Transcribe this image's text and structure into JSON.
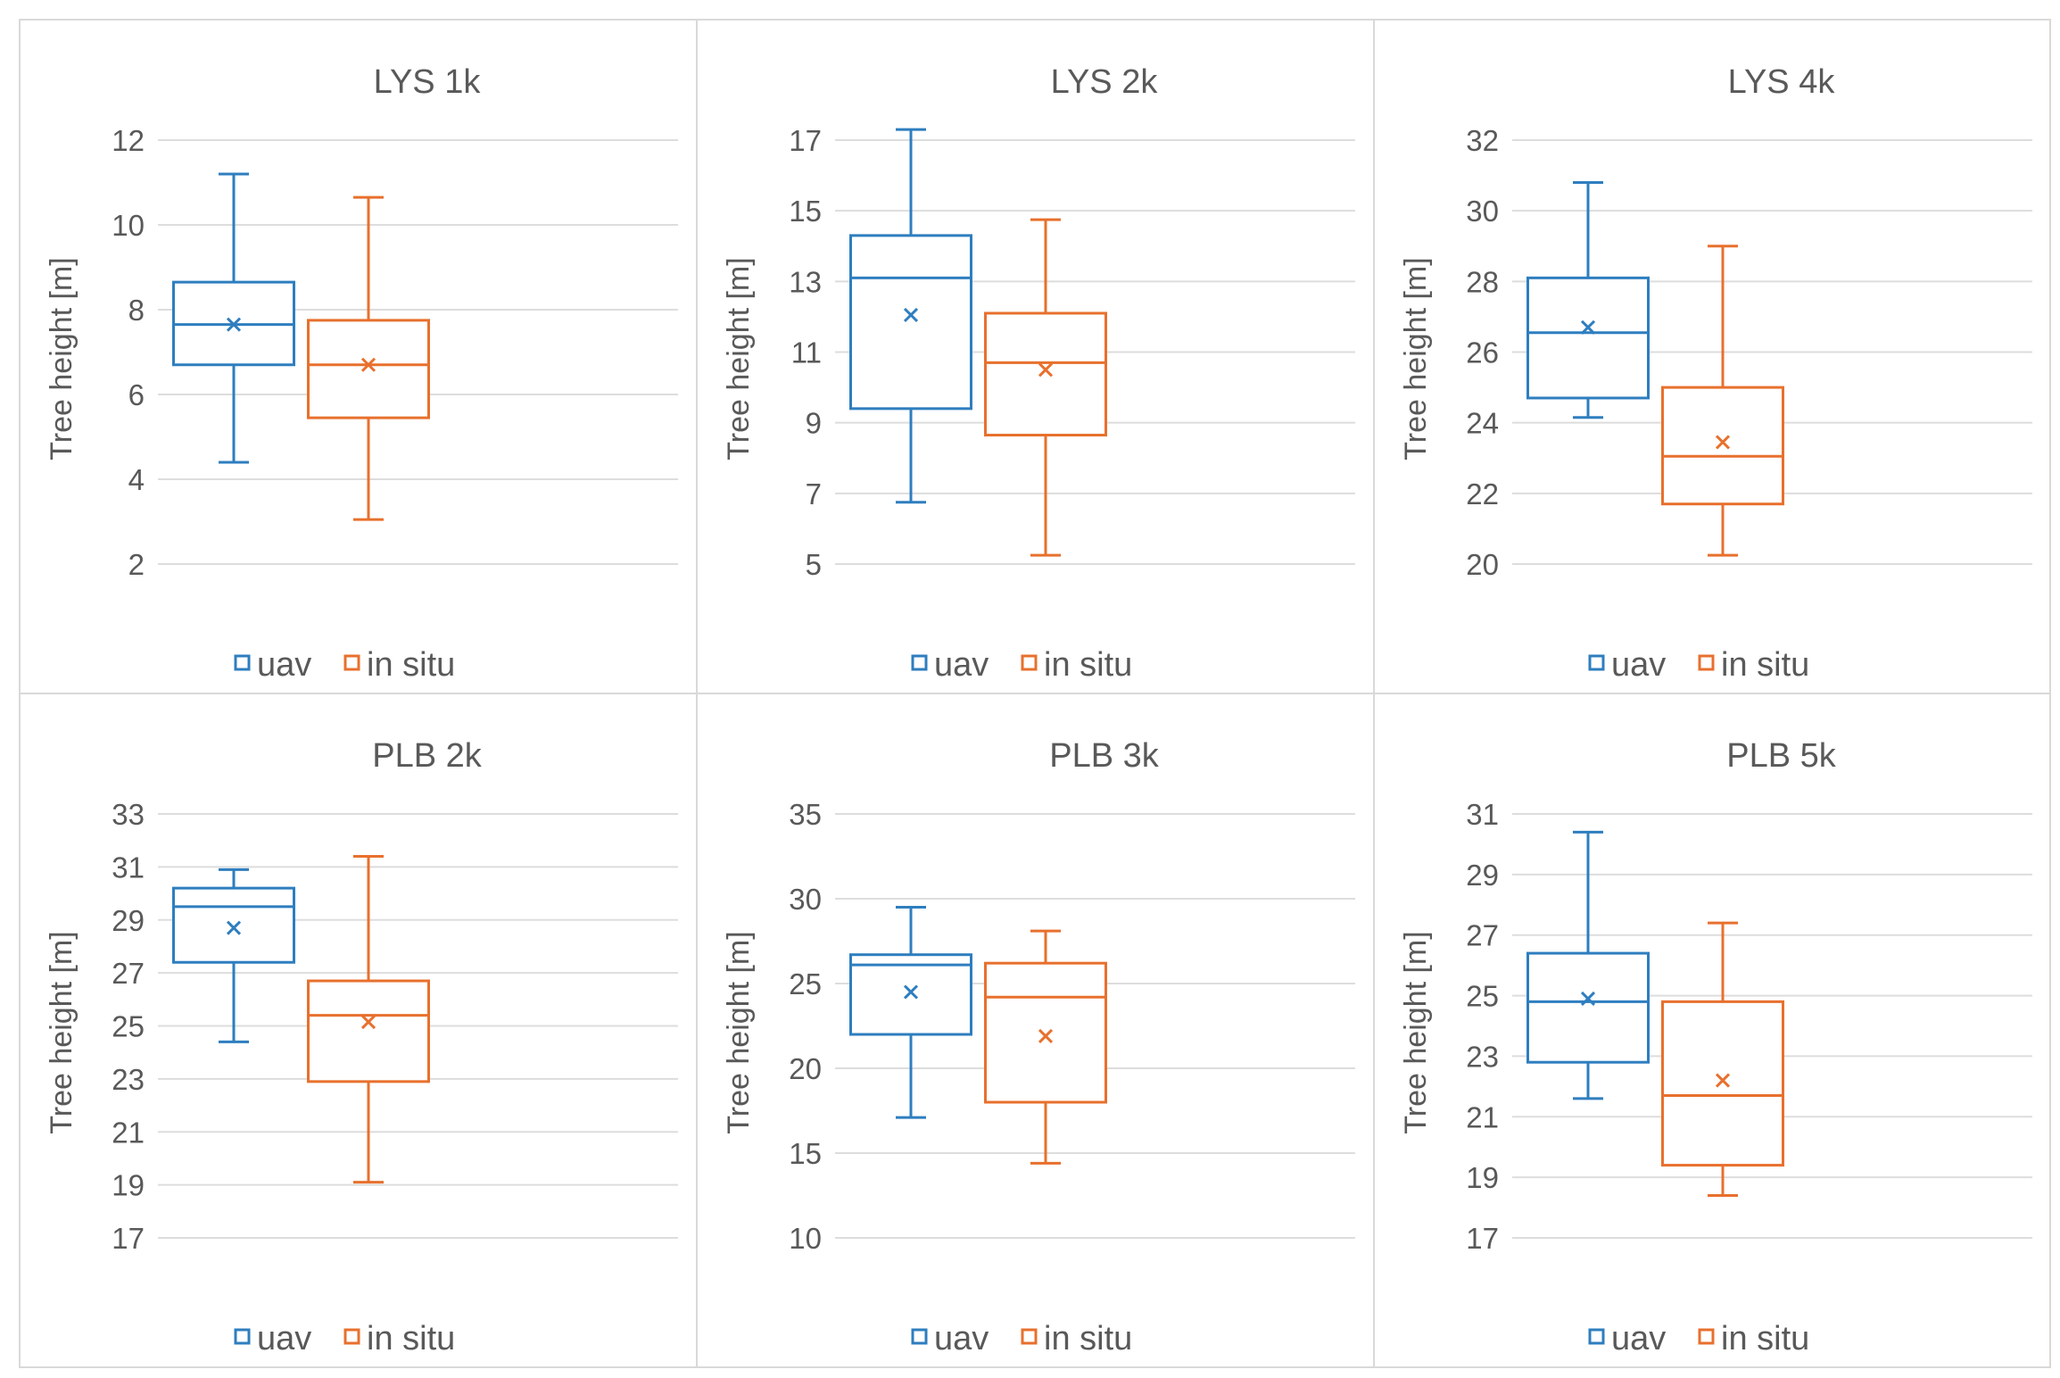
{
  "chart_data": [
    {
      "type": "box",
      "title": "LYS 1k",
      "ylabel": "Tree height [m]",
      "ylim": [
        2,
        12
      ],
      "yticks": [
        2,
        4,
        6,
        8,
        10,
        12
      ],
      "grid": true,
      "legend": "bottom",
      "series": [
        {
          "name": "uav",
          "min": 4.4,
          "q1": 6.7,
          "median": 7.65,
          "q3": 8.65,
          "max": 11.2,
          "mean": 7.65
        },
        {
          "name": "in situ",
          "min": 3.05,
          "q1": 5.45,
          "median": 6.7,
          "q3": 7.75,
          "max": 10.65,
          "mean": 6.7
        }
      ]
    },
    {
      "type": "box",
      "title": "LYS 2k",
      "ylabel": "Tree height [m]",
      "ylim": [
        5,
        18
      ],
      "yticks": [
        5,
        7,
        9,
        11,
        13,
        15,
        17
      ],
      "grid": true,
      "legend": "bottom",
      "series": [
        {
          "name": "uav",
          "min": 6.75,
          "q1": 9.4,
          "median": 13.1,
          "q3": 14.3,
          "max": 17.3,
          "mean": 12.05
        },
        {
          "name": "in situ",
          "min": 5.25,
          "q1": 8.65,
          "median": 10.7,
          "q3": 12.1,
          "max": 14.75,
          "mean": 10.5
        }
      ]
    },
    {
      "type": "box",
      "title": "LYS 4k",
      "ylabel": "Tree height [m]",
      "ylim": [
        20,
        32
      ],
      "yticks": [
        20,
        22,
        24,
        26,
        28,
        30,
        32
      ],
      "grid": true,
      "legend": "bottom",
      "series": [
        {
          "name": "uav",
          "min": 24.15,
          "q1": 24.7,
          "median": 26.55,
          "q3": 28.1,
          "max": 30.8,
          "mean": 26.7
        },
        {
          "name": "in situ",
          "min": 20.25,
          "q1": 21.7,
          "median": 23.05,
          "q3": 25.0,
          "max": 29.0,
          "mean": 23.45
        }
      ]
    },
    {
      "type": "box",
      "title": "PLB 2k",
      "ylabel": "Tree height [m]",
      "ylim": [
        17,
        34
      ],
      "yticks": [
        17,
        19,
        21,
        23,
        25,
        27,
        29,
        31,
        33
      ],
      "grid": true,
      "legend": "bottom",
      "series": [
        {
          "name": "uav",
          "min": 24.4,
          "q1": 27.4,
          "median": 29.5,
          "q3": 30.2,
          "max": 30.9,
          "mean": 28.7
        },
        {
          "name": "in situ",
          "min": 19.1,
          "q1": 22.9,
          "median": 25.4,
          "q3": 26.7,
          "max": 31.4,
          "mean": 25.15
        }
      ]
    },
    {
      "type": "box",
      "title": "PLB 3k",
      "ylabel": "Tree height [m]",
      "ylim": [
        10,
        35
      ],
      "yticks": [
        10,
        15,
        20,
        25,
        30,
        35
      ],
      "grid": true,
      "legend": "bottom",
      "series": [
        {
          "name": "uav",
          "min": 17.1,
          "q1": 22.0,
          "median": 26.1,
          "q3": 26.7,
          "max": 29.5,
          "mean": 24.5
        },
        {
          "name": "in situ",
          "min": 14.4,
          "q1": 18.0,
          "median": 24.2,
          "q3": 26.2,
          "max": 28.1,
          "mean": 21.9
        }
      ]
    },
    {
      "type": "box",
      "title": "PLB 5k",
      "ylabel": "Tree height [m]",
      "ylim": [
        17,
        32
      ],
      "yticks": [
        17,
        19,
        21,
        23,
        25,
        27,
        29,
        31
      ],
      "grid": true,
      "legend": "bottom",
      "series": [
        {
          "name": "uav",
          "min": 21.6,
          "q1": 22.8,
          "median": 24.8,
          "q3": 26.4,
          "max": 30.4,
          "mean": 24.9
        },
        {
          "name": "in situ",
          "min": 18.4,
          "q1": 19.4,
          "median": 21.7,
          "q3": 24.8,
          "max": 27.4,
          "mean": 22.2
        }
      ]
    }
  ],
  "colors": {
    "uav": "#2E7EBF",
    "in situ": "#E8702D",
    "grid": "#DDDDDD",
    "text": "#595959",
    "border": "#D9D9D9"
  }
}
